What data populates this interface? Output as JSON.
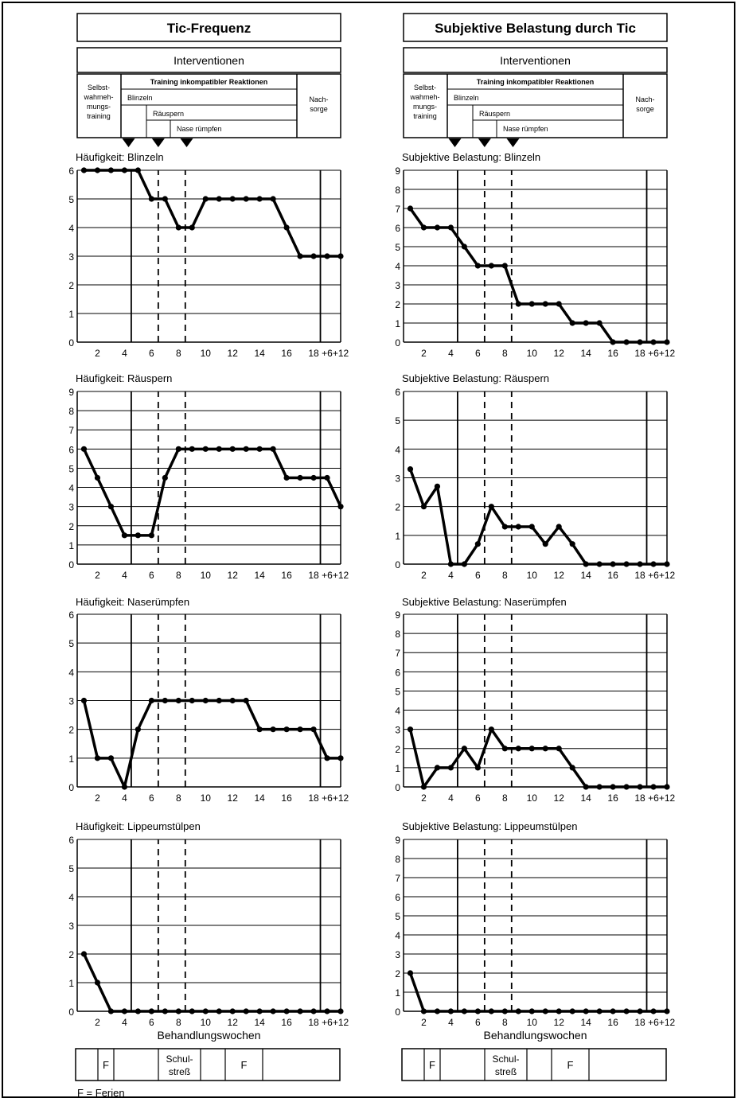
{
  "column_titles": [
    "Tic-Frequenz",
    "Subjektive Belastung durch Tic"
  ],
  "interventions": {
    "header": "Interventionen",
    "self_monitoring": "Selbst-\nwahmeh-\nmungs-\ntraining",
    "incompatible": "Training inkompatibler Reaktionen",
    "blinking": "Blinzeln",
    "throat": "Räuspern",
    "nose": "Nase rümpfen",
    "aftercare": "Nach-\nsorge"
  },
  "x_axis_label": "Behandlungswochen",
  "schedule": {
    "cells": [
      "",
      "F",
      "",
      "Schul-\nstreß",
      "",
      "F",
      ""
    ],
    "legend": "F = Ferien"
  },
  "chart_data": [
    {
      "type": "line",
      "title": "Häufigkeit: Blinzeln",
      "ylim": [
        0,
        6
      ],
      "x": [
        1,
        2,
        3,
        4,
        5,
        6,
        7,
        8,
        9,
        10,
        11,
        12,
        13,
        14,
        15,
        16,
        17,
        18,
        "+6",
        "+12"
      ],
      "x_ticks": [
        "2",
        "4",
        "6",
        "8",
        "10",
        "12",
        "14",
        "16",
        "18",
        "+6",
        "+12"
      ],
      "series": [
        {
          "values": [
            6,
            6,
            6,
            6,
            6,
            5,
            5,
            4,
            4,
            5,
            5,
            5,
            5,
            5,
            5,
            4,
            3,
            3,
            3,
            3
          ]
        }
      ]
    },
    {
      "type": "line",
      "title": "Subjektive Belastung: Blinzeln",
      "ylim": [
        0,
        9
      ],
      "x": [
        1,
        2,
        3,
        4,
        5,
        6,
        7,
        8,
        9,
        10,
        11,
        12,
        13,
        14,
        15,
        16,
        17,
        18,
        "+6",
        "+12"
      ],
      "x_ticks": [
        "2",
        "4",
        "6",
        "8",
        "10",
        "12",
        "14",
        "16",
        "18",
        "+6",
        "+12"
      ],
      "series": [
        {
          "values": [
            7,
            6,
            6,
            6,
            5,
            4,
            4,
            4,
            2,
            2,
            2,
            2,
            1,
            1,
            1,
            0,
            0,
            0,
            0,
            0
          ]
        }
      ]
    },
    {
      "type": "line",
      "title": "Häufigkeit: Räuspern",
      "ylim": [
        0,
        9
      ],
      "x": [
        1,
        2,
        3,
        4,
        5,
        6,
        7,
        8,
        9,
        10,
        11,
        12,
        13,
        14,
        15,
        16,
        17,
        18,
        "+6",
        "+12"
      ],
      "x_ticks": [
        "2",
        "4",
        "6",
        "8",
        "10",
        "12",
        "14",
        "16",
        "18",
        "+6",
        "+12"
      ],
      "series": [
        {
          "values": [
            6,
            4.5,
            3,
            1.5,
            1.5,
            1.5,
            4.5,
            6,
            6,
            6,
            6,
            6,
            6,
            6,
            6,
            4.5,
            4.5,
            4.5,
            4.5,
            3
          ]
        }
      ]
    },
    {
      "type": "line",
      "title": "Subjektive Belastung: Räuspern",
      "ylim": [
        0,
        6
      ],
      "x": [
        1,
        2,
        3,
        4,
        5,
        6,
        7,
        8,
        9,
        10,
        11,
        12,
        13,
        14,
        15,
        16,
        17,
        18,
        "+6",
        "+12"
      ],
      "x_ticks": [
        "2",
        "4",
        "6",
        "8",
        "10",
        "12",
        "14",
        "16",
        "18",
        "+6",
        "+12"
      ],
      "series": [
        {
          "values": [
            3.3,
            2,
            2.7,
            0,
            0,
            0.7,
            2,
            1.3,
            1.3,
            1.3,
            0.7,
            1.3,
            0.7,
            0,
            0,
            0,
            0,
            0,
            0,
            0
          ]
        }
      ]
    },
    {
      "type": "line",
      "title": "Häufigkeit: Naserümpfen",
      "ylim": [
        0,
        6
      ],
      "x": [
        1,
        2,
        3,
        4,
        5,
        6,
        7,
        8,
        9,
        10,
        11,
        12,
        13,
        14,
        15,
        16,
        17,
        18,
        "+6",
        "+12"
      ],
      "x_ticks": [
        "2",
        "4",
        "6",
        "8",
        "10",
        "12",
        "14",
        "16",
        "18",
        "+6",
        "+12"
      ],
      "series": [
        {
          "values": [
            3,
            1,
            1,
            0,
            2,
            3,
            3,
            3,
            3,
            3,
            3,
            3,
            3,
            2,
            2,
            2,
            2,
            2,
            1,
            1
          ]
        }
      ]
    },
    {
      "type": "line",
      "title": "Subjektive Belastung: Naserümpfen",
      "ylim": [
        0,
        9
      ],
      "x": [
        1,
        2,
        3,
        4,
        5,
        6,
        7,
        8,
        9,
        10,
        11,
        12,
        13,
        14,
        15,
        16,
        17,
        18,
        "+6",
        "+12"
      ],
      "x_ticks": [
        "2",
        "4",
        "6",
        "8",
        "10",
        "12",
        "14",
        "16",
        "18",
        "+6",
        "+12"
      ],
      "series": [
        {
          "values": [
            3,
            0,
            1,
            1,
            2,
            1,
            3,
            2,
            2,
            2,
            2,
            2,
            1,
            0,
            0,
            0,
            0,
            0,
            0,
            0
          ]
        }
      ]
    },
    {
      "type": "line",
      "title": "Häufigkeit: Lippeumstülpen",
      "ylim": [
        0,
        6
      ],
      "x": [
        1,
        2,
        3,
        4,
        5,
        6,
        7,
        8,
        9,
        10,
        11,
        12,
        13,
        14,
        15,
        16,
        17,
        18,
        "+6",
        "+12"
      ],
      "x_ticks": [
        "2",
        "4",
        "6",
        "8",
        "10",
        "12",
        "14",
        "16",
        "18",
        "+6",
        "+12"
      ],
      "series": [
        {
          "values": [
            2,
            1,
            0,
            0,
            0,
            0,
            0,
            0,
            0,
            0,
            0,
            0,
            0,
            0,
            0,
            0,
            0,
            0,
            0,
            0
          ]
        }
      ]
    },
    {
      "type": "line",
      "title": "Subjektive Belastung: Lippeumstülpen",
      "ylim": [
        0,
        9
      ],
      "x": [
        1,
        2,
        3,
        4,
        5,
        6,
        7,
        8,
        9,
        10,
        11,
        12,
        13,
        14,
        15,
        16,
        17,
        18,
        "+6",
        "+12"
      ],
      "x_ticks": [
        "2",
        "4",
        "6",
        "8",
        "10",
        "12",
        "14",
        "16",
        "18",
        "+6",
        "+12"
      ],
      "series": [
        {
          "values": [
            2,
            0,
            0,
            0,
            0,
            0,
            0,
            0,
            0,
            0,
            0,
            0,
            0,
            0,
            0,
            0,
            0,
            0,
            0,
            0
          ]
        }
      ]
    }
  ]
}
